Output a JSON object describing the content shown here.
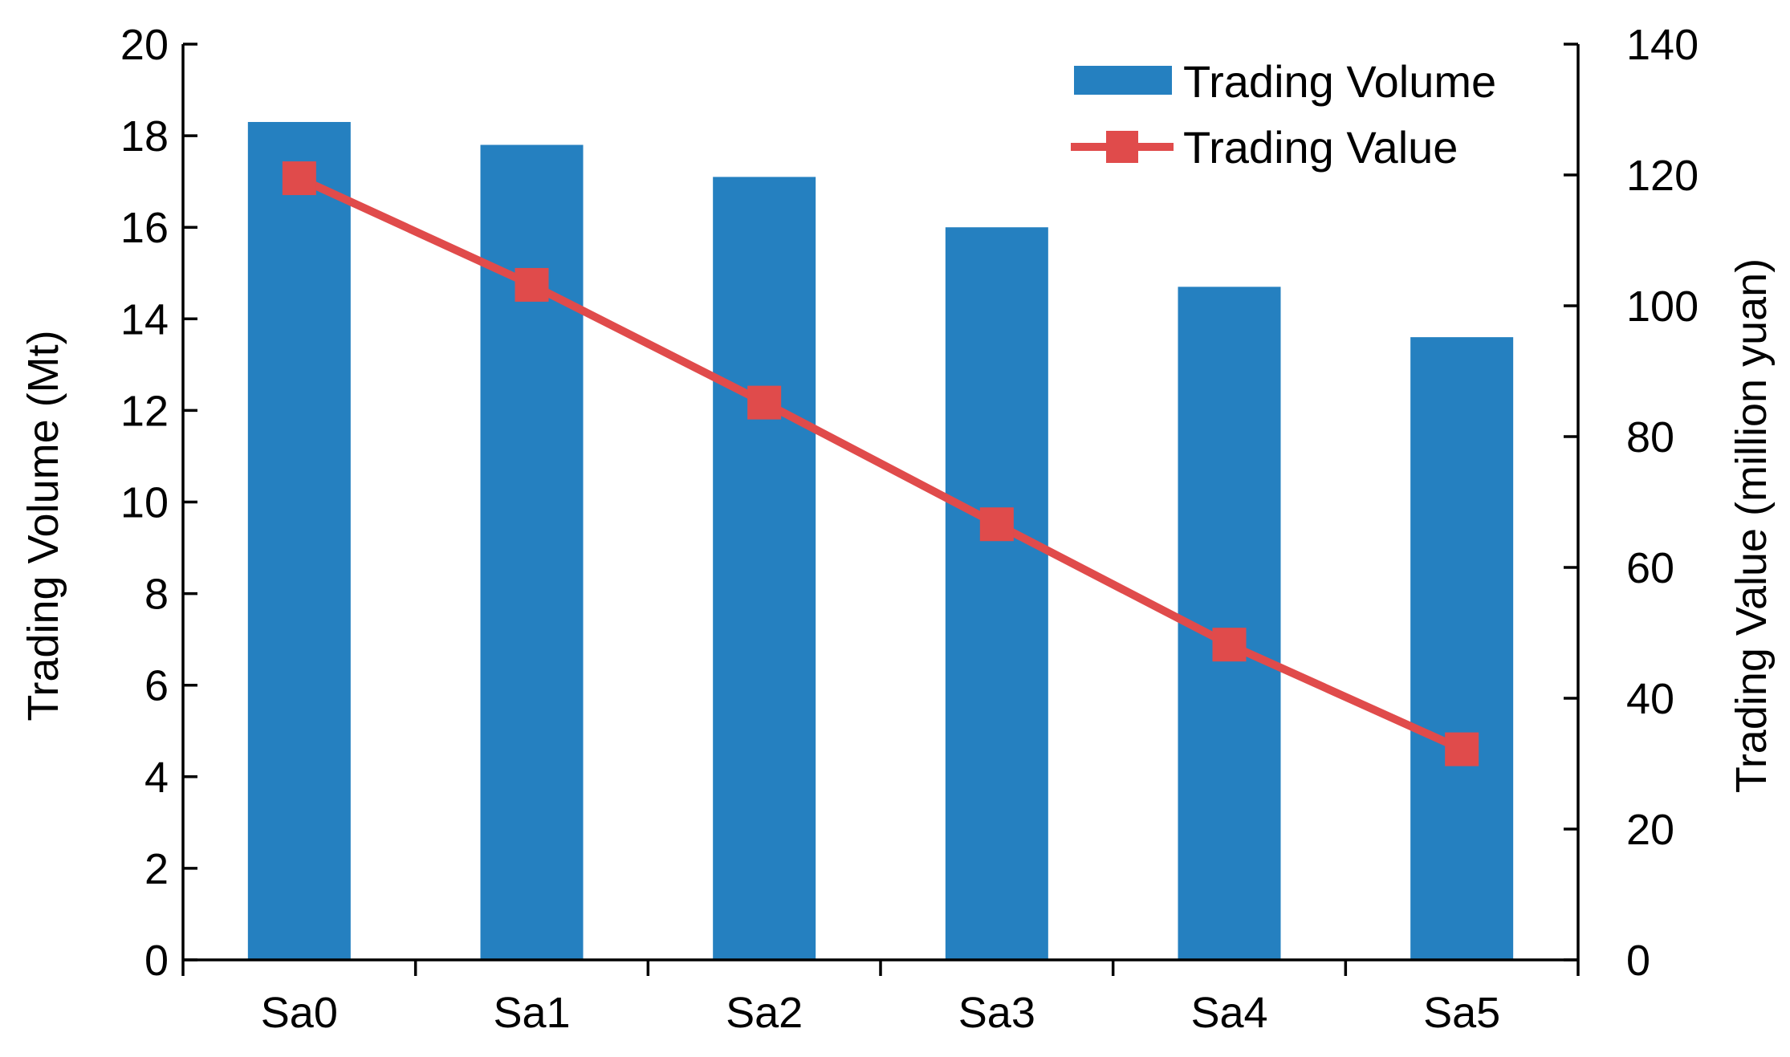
{
  "chart_data": {
    "type": "bar",
    "categories": [
      "Sa0",
      "Sa1",
      "Sa2",
      "Sa3",
      "Sa4",
      "Sa5"
    ],
    "series": [
      {
        "name": "Trading Volume",
        "type": "bar",
        "axis": "left",
        "color": "#2580C0",
        "values": [
          18.3,
          17.8,
          17.1,
          16.0,
          14.7,
          13.6
        ]
      },
      {
        "name": "Trading Value",
        "type": "line",
        "axis": "right",
        "color": "#E04B4B",
        "marker": "square",
        "values": [
          119.5,
          103.2,
          85.2,
          66.6,
          48.2,
          32.2
        ]
      }
    ],
    "ylabel": "Trading Volume (Mt)",
    "y2label": "Trading Value (million yuan)",
    "ylim": [
      0,
      20
    ],
    "yticks": [
      0,
      2,
      4,
      6,
      8,
      10,
      12,
      14,
      16,
      18,
      20
    ],
    "y2lim": [
      0,
      140
    ],
    "y2ticks": [
      0,
      20,
      40,
      60,
      80,
      100,
      120,
      140
    ],
    "grid": false,
    "legend": "top-right"
  }
}
